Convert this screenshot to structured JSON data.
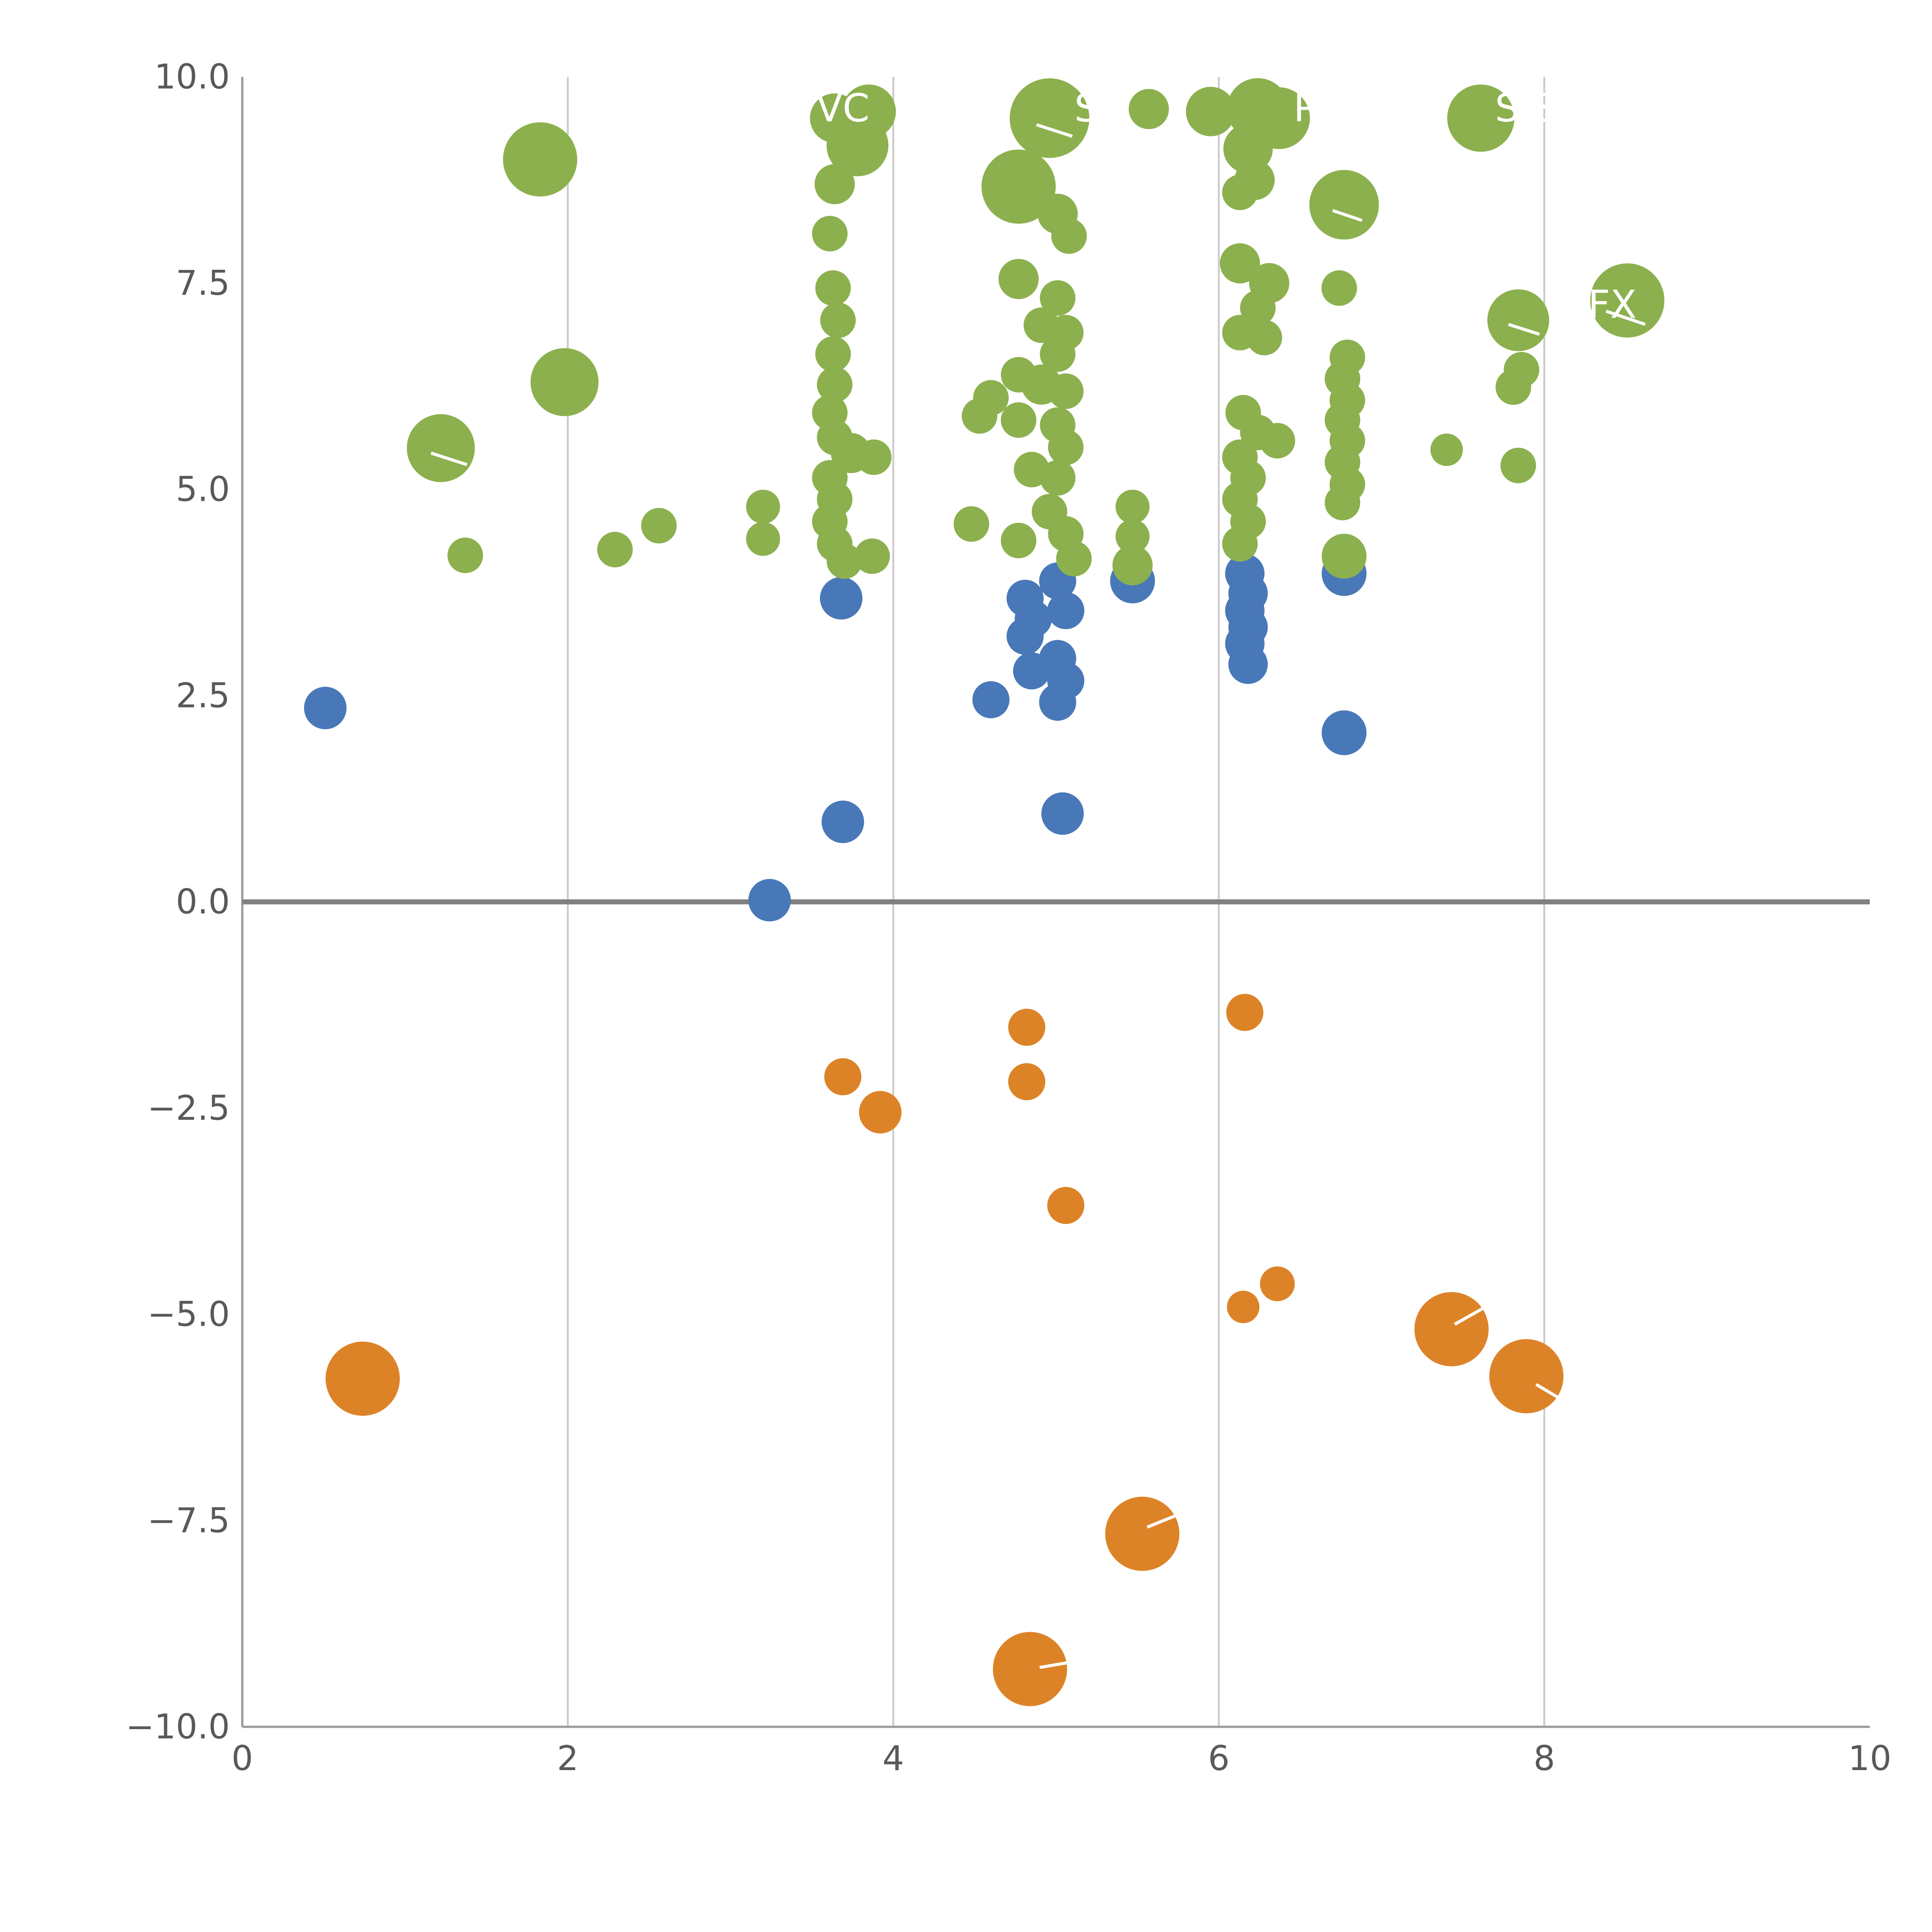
{
  "chart_data": {
    "type": "scatter",
    "title": "",
    "xlabel": "",
    "ylabel": "",
    "xlim": [
      0,
      10
    ],
    "ylim": [
      -10,
      10
    ],
    "grid": "vertical-only",
    "legend": "none",
    "x_ticks": [
      {
        "value": 0,
        "label": "0"
      },
      {
        "value": 2,
        "label": "2"
      },
      {
        "value": 4,
        "label": "4"
      },
      {
        "value": 6,
        "label": "6"
      },
      {
        "value": 8,
        "label": "8"
      },
      {
        "value": 10,
        "label": "10"
      }
    ],
    "y_ticks": [
      {
        "value": -10,
        "label": "−10.0"
      },
      {
        "value": -7.5,
        "label": "−7.5"
      },
      {
        "value": -5,
        "label": "−5.0"
      },
      {
        "value": -2.5,
        "label": "−2.5"
      },
      {
        "value": 0,
        "label": "0.0"
      },
      {
        "value": 2.5,
        "label": "2.5"
      },
      {
        "value": 5,
        "label": "5.0"
      },
      {
        "value": 7.5,
        "label": "7.5"
      },
      {
        "value": 10,
        "label": "10.0"
      }
    ],
    "gridline_x_values": [
      2,
      4,
      6,
      8
    ],
    "zero_line_y": 0,
    "colors": {
      "grid": "#cccccc",
      "spine": "#9e9e9e",
      "tick_label": "#595959",
      "zero_line": "#808080",
      "annotation": "#ffffff"
    },
    "series": [
      {
        "name": "positive-green",
        "color": "#8cb04e",
        "points": [
          [
            1.83,
            9.0,
            96
          ],
          [
            1.98,
            6.3,
            88
          ],
          [
            1.22,
            5.5,
            88
          ],
          [
            1.37,
            4.2,
            46
          ],
          [
            2.29,
            4.27,
            46
          ],
          [
            2.56,
            4.56,
            46
          ],
          [
            3.2,
            4.79,
            44
          ],
          [
            3.2,
            4.4,
            44
          ],
          [
            3.64,
            9.5,
            64
          ],
          [
            3.85,
            9.58,
            70
          ],
          [
            3.78,
            9.17,
            80
          ],
          [
            3.64,
            8.7,
            52
          ],
          [
            3.61,
            8.1,
            46
          ],
          [
            3.63,
            7.44,
            46
          ],
          [
            3.66,
            7.05,
            46
          ],
          [
            3.63,
            6.64,
            46
          ],
          [
            3.64,
            6.27,
            46
          ],
          [
            3.61,
            5.93,
            46
          ],
          [
            3.64,
            5.63,
            46
          ],
          [
            3.74,
            5.44,
            52
          ],
          [
            3.88,
            5.39,
            46
          ],
          [
            3.61,
            5.14,
            46
          ],
          [
            3.64,
            4.88,
            46
          ],
          [
            3.61,
            4.61,
            46
          ],
          [
            3.64,
            4.34,
            46
          ],
          [
            3.7,
            4.13,
            46
          ],
          [
            3.87,
            4.19,
            46
          ],
          [
            4.96,
            9.5,
            103
          ],
          [
            5.57,
            9.61,
            52
          ],
          [
            5.95,
            9.58,
            64
          ],
          [
            4.77,
            8.67,
            96
          ],
          [
            5.01,
            8.34,
            52
          ],
          [
            5.08,
            8.07,
            46
          ],
          [
            4.77,
            7.55,
            52
          ],
          [
            5.01,
            7.32,
            46
          ],
          [
            4.91,
            6.99,
            46
          ],
          [
            5.06,
            6.9,
            46
          ],
          [
            5.01,
            6.64,
            46
          ],
          [
            4.77,
            6.39,
            46
          ],
          [
            4.91,
            6.27,
            52
          ],
          [
            5.06,
            6.19,
            46
          ],
          [
            4.6,
            6.11,
            46
          ],
          [
            4.53,
            5.89,
            46
          ],
          [
            4.77,
            5.84,
            46
          ],
          [
            5.01,
            5.78,
            46
          ],
          [
            5.06,
            5.51,
            46
          ],
          [
            4.85,
            5.24,
            46
          ],
          [
            5.01,
            5.14,
            46
          ],
          [
            4.48,
            4.58,
            46
          ],
          [
            4.77,
            4.38,
            46
          ],
          [
            4.96,
            4.73,
            46
          ],
          [
            5.06,
            4.46,
            46
          ],
          [
            5.11,
            4.16,
            46
          ],
          [
            5.47,
            4.79,
            44
          ],
          [
            5.47,
            4.43,
            44
          ],
          [
            5.47,
            4.08,
            52
          ],
          [
            6.24,
            9.61,
            80
          ],
          [
            6.37,
            9.5,
            80
          ],
          [
            6.18,
            9.13,
            64
          ],
          [
            6.22,
            8.75,
            52
          ],
          [
            6.13,
            8.6,
            46
          ],
          [
            6.13,
            7.74,
            52
          ],
          [
            6.31,
            7.5,
            52
          ],
          [
            6.24,
            7.2,
            46
          ],
          [
            6.13,
            6.9,
            46
          ],
          [
            6.28,
            6.84,
            46
          ],
          [
            6.15,
            5.93,
            46
          ],
          [
            6.24,
            5.69,
            46
          ],
          [
            6.36,
            5.59,
            46
          ],
          [
            6.13,
            5.39,
            46
          ],
          [
            6.18,
            5.14,
            46
          ],
          [
            6.13,
            4.88,
            46
          ],
          [
            6.18,
            4.61,
            46
          ],
          [
            6.13,
            4.34,
            46
          ],
          [
            6.77,
            8.45,
            90
          ],
          [
            6.74,
            7.44,
            46
          ],
          [
            6.79,
            6.6,
            46
          ],
          [
            6.76,
            6.34,
            46
          ],
          [
            6.79,
            6.08,
            46
          ],
          [
            6.76,
            5.84,
            46
          ],
          [
            6.79,
            5.59,
            46
          ],
          [
            6.76,
            5.33,
            46
          ],
          [
            6.79,
            5.06,
            46
          ],
          [
            6.76,
            4.84,
            46
          ],
          [
            6.77,
            4.19,
            58
          ],
          [
            7.4,
            5.48,
            42
          ],
          [
            7.61,
            9.5,
            87
          ],
          [
            7.84,
            7.05,
            80
          ],
          [
            7.86,
            6.45,
            46
          ],
          [
            7.81,
            6.24,
            46
          ],
          [
            7.84,
            5.29,
            46
          ],
          [
            8.51,
            7.29,
            96
          ]
        ]
      },
      {
        "name": "neutral-blue",
        "color": "#4878b8",
        "points": [
          [
            0.51,
            2.35,
            55
          ],
          [
            3.68,
            3.68,
            55
          ],
          [
            3.69,
            0.97,
            55
          ],
          [
            3.24,
            0.02,
            55
          ],
          [
            4.6,
            2.45,
            48
          ],
          [
            4.81,
            3.68,
            48
          ],
          [
            4.86,
            3.43,
            48
          ],
          [
            4.81,
            3.22,
            48
          ],
          [
            4.85,
            2.8,
            48
          ],
          [
            5.01,
            3.89,
            48
          ],
          [
            5.06,
            3.53,
            48
          ],
          [
            5.01,
            2.95,
            48
          ],
          [
            5.06,
            2.68,
            48
          ],
          [
            5.01,
            2.42,
            48
          ],
          [
            5.04,
            1.07,
            55
          ],
          [
            5.47,
            3.89,
            58
          ],
          [
            6.16,
            3.98,
            51
          ],
          [
            6.18,
            3.74,
            51
          ],
          [
            6.16,
            3.53,
            51
          ],
          [
            6.18,
            3.33,
            51
          ],
          [
            6.16,
            3.13,
            51
          ],
          [
            6.18,
            2.88,
            51
          ],
          [
            6.77,
            3.98,
            58
          ],
          [
            6.77,
            2.05,
            58
          ]
        ]
      },
      {
        "name": "negative-orange",
        "color": "#dd8327",
        "points": [
          [
            0.74,
            -5.78,
            96
          ],
          [
            3.69,
            -2.12,
            48
          ],
          [
            3.92,
            -2.55,
            55
          ],
          [
            4.82,
            -1.52,
            48
          ],
          [
            4.82,
            -2.18,
            48
          ],
          [
            5.06,
            -3.68,
            48
          ],
          [
            6.16,
            -1.34,
            48
          ],
          [
            6.15,
            -4.91,
            42
          ],
          [
            6.36,
            -4.63,
            45
          ],
          [
            7.43,
            -5.18,
            96
          ],
          [
            7.89,
            -5.75,
            96
          ],
          [
            5.53,
            -7.66,
            96
          ],
          [
            4.84,
            -9.3,
            96
          ]
        ]
      }
    ],
    "annotations": [
      {
        "text": "VC",
        "x": 3.69,
        "y": 9.62
      },
      {
        "text": "SM",
        "x": 5.29,
        "y": 9.62
      },
      {
        "text": "P",
        "x": 6.53,
        "y": 9.62
      },
      {
        "text": "S-S",
        "x": 7.89,
        "y": 9.62
      },
      {
        "text": "ICFX",
        "x": 8.3,
        "y": 7.24
      }
    ],
    "leader_lines": [
      {
        "x1": 1.16,
        "y1": 5.44,
        "x2": 1.38,
        "y2": 5.3
      },
      {
        "x1": 4.88,
        "y1": 9.42,
        "x2": 5.1,
        "y2": 9.28
      },
      {
        "x1": 6.7,
        "y1": 8.38,
        "x2": 6.88,
        "y2": 8.26
      },
      {
        "x1": 7.78,
        "y1": 7.0,
        "x2": 7.97,
        "y2": 6.88
      },
      {
        "x1": 8.38,
        "y1": 7.16,
        "x2": 8.62,
        "y2": 7.0
      },
      {
        "x1": 7.45,
        "y1": -5.12,
        "x2": 7.63,
        "y2": -4.92
      },
      {
        "x1": 7.95,
        "y1": -5.85,
        "x2": 8.13,
        "y2": -6.06
      },
      {
        "x1": 5.56,
        "y1": -7.58,
        "x2": 5.76,
        "y2": -7.42
      },
      {
        "x1": 4.9,
        "y1": -9.28,
        "x2": 5.08,
        "y2": -9.22
      }
    ]
  }
}
